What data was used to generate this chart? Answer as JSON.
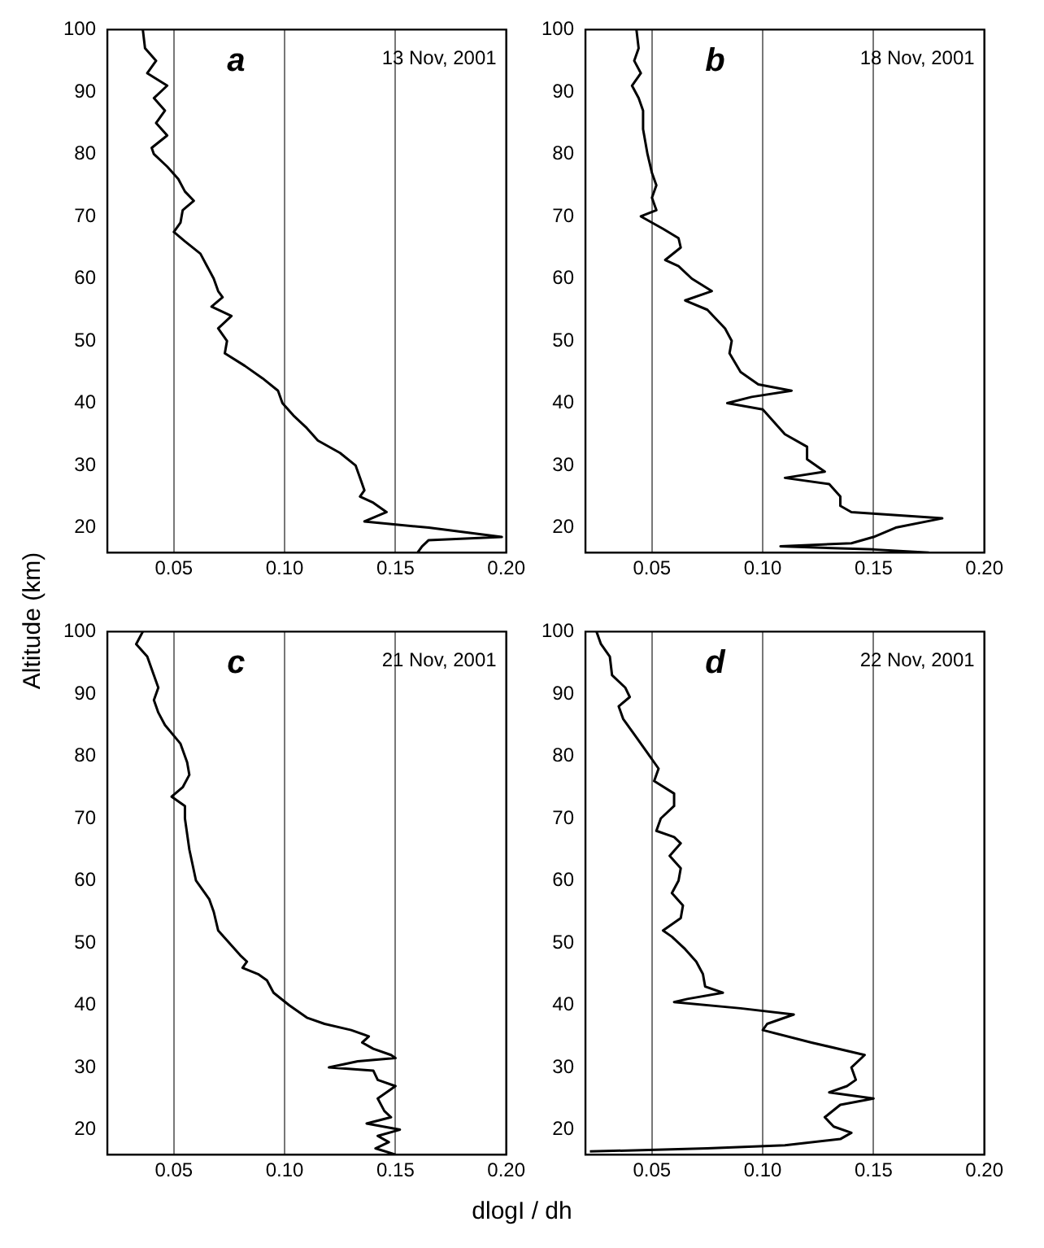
{
  "chart_data": [
    {
      "type": "line",
      "ylabel": "Altitude (km)",
      "annotations": [
        "a",
        "13 Nov, 2001"
      ],
      "xlim": [
        0.02,
        0.2
      ],
      "ylim": [
        16,
        100
      ],
      "xticks": [
        {
          "value": 0.05,
          "label": "0.05"
        },
        {
          "value": 0.1,
          "label": "0.10"
        },
        {
          "value": 0.15,
          "label": "0.15"
        },
        {
          "value": 0.2,
          "label": "0.20"
        }
      ],
      "yticks": [
        20,
        30,
        40,
        50,
        60,
        70,
        80,
        90,
        100
      ],
      "grid": "x",
      "series": [
        {
          "color": "#000000",
          "x": [
            0.036,
            0.037,
            0.042,
            0.038,
            0.047,
            0.041,
            0.046,
            0.042,
            0.047,
            0.04,
            0.041,
            0.047,
            0.052,
            0.055,
            0.059,
            0.054,
            0.053,
            0.05,
            0.055,
            0.062,
            0.065,
            0.068,
            0.07,
            0.072,
            0.067,
            0.076,
            0.07,
            0.074,
            0.073,
            0.082,
            0.09,
            0.097,
            0.099,
            0.104,
            0.11,
            0.115,
            0.125,
            0.132,
            0.134,
            0.136,
            0.134,
            0.14,
            0.146,
            0.136,
            0.165,
            0.198,
            0.165,
            0.162,
            0.16
          ],
          "values": [
            100,
            97,
            95,
            93,
            91,
            89,
            87,
            85,
            83,
            81,
            80,
            78,
            76,
            74,
            72.5,
            71,
            69,
            67.5,
            66,
            64,
            62,
            60,
            58,
            57,
            55.5,
            54,
            52,
            50,
            48,
            46,
            44,
            42,
            40,
            38,
            36,
            34,
            32,
            30,
            28,
            26,
            25,
            24,
            22.5,
            21,
            20,
            18.5,
            18,
            17,
            16
          ]
        }
      ]
    },
    {
      "type": "line",
      "annotations": [
        "b",
        "18 Nov, 2001"
      ],
      "xlim": [
        0.02,
        0.2
      ],
      "ylim": [
        16,
        100
      ],
      "xticks": [
        {
          "value": 0.05,
          "label": "0.05"
        },
        {
          "value": 0.1,
          "label": "0.10"
        },
        {
          "value": 0.15,
          "label": "0.15"
        },
        {
          "value": 0.2,
          "label": "0.20"
        }
      ],
      "yticks": [
        20,
        30,
        40,
        50,
        60,
        70,
        80,
        90,
        100
      ],
      "grid": "x",
      "series": [
        {
          "color": "#000000",
          "x": [
            0.043,
            0.044,
            0.042,
            0.045,
            0.041,
            0.044,
            0.046,
            0.046,
            0.048,
            0.05,
            0.052,
            0.05,
            0.052,
            0.045,
            0.055,
            0.062,
            0.063,
            0.056,
            0.062,
            0.068,
            0.077,
            0.065,
            0.075,
            0.083,
            0.086,
            0.085,
            0.09,
            0.098,
            0.113,
            0.095,
            0.084,
            0.1,
            0.105,
            0.11,
            0.12,
            0.12,
            0.128,
            0.11,
            0.13,
            0.135,
            0.135,
            0.14,
            0.181,
            0.16,
            0.15,
            0.14,
            0.108,
            0.15,
            0.175
          ],
          "values": [
            100,
            97,
            95,
            93,
            91,
            89,
            87,
            84,
            80,
            77,
            75,
            73,
            71,
            70,
            68,
            66.5,
            65,
            63,
            62,
            60,
            58,
            56.5,
            55,
            52,
            50,
            48,
            45,
            43,
            42,
            41,
            40,
            39,
            37,
            35,
            33,
            31,
            29,
            28,
            27,
            25,
            23.5,
            22.5,
            21.5,
            20,
            18.5,
            17.5,
            17,
            16.5,
            16
          ]
        }
      ]
    },
    {
      "type": "line",
      "xlabel": "dlogI / dh",
      "annotations": [
        "c",
        "21 Nov, 2001"
      ],
      "xlim": [
        0.02,
        0.2
      ],
      "ylim": [
        16,
        100
      ],
      "xticks": [
        {
          "value": 0.05,
          "label": "0.05"
        },
        {
          "value": 0.1,
          "label": "0.10"
        },
        {
          "value": 0.15,
          "label": "0.15"
        },
        {
          "value": 0.2,
          "label": "0.20"
        }
      ],
      "yticks": [
        20,
        30,
        40,
        50,
        60,
        70,
        80,
        90,
        100
      ],
      "grid": "x",
      "series": [
        {
          "color": "#000000",
          "x": [
            0.036,
            0.033,
            0.038,
            0.041,
            0.043,
            0.041,
            0.043,
            0.046,
            0.053,
            0.056,
            0.057,
            0.054,
            0.049,
            0.055,
            0.055,
            0.057,
            0.06,
            0.066,
            0.068,
            0.07,
            0.075,
            0.08,
            0.083,
            0.081,
            0.088,
            0.092,
            0.095,
            0.102,
            0.11,
            0.118,
            0.13,
            0.138,
            0.135,
            0.14,
            0.148,
            0.15,
            0.133,
            0.12,
            0.14,
            0.142,
            0.15,
            0.142,
            0.145,
            0.148,
            0.137,
            0.152,
            0.142,
            0.147,
            0.141,
            0.15
          ],
          "values": [
            100,
            98,
            96,
            93,
            91,
            89,
            87,
            85,
            82,
            79,
            77,
            75,
            73.5,
            72,
            70,
            65,
            60,
            57,
            55,
            52,
            50,
            48,
            47,
            46,
            45,
            44,
            42,
            40,
            38,
            37,
            36,
            35,
            34,
            33,
            32,
            31.5,
            31,
            30,
            29.5,
            28,
            27,
            25,
            23,
            22,
            21,
            20,
            19,
            18,
            17,
            16
          ]
        }
      ]
    },
    {
      "type": "line",
      "annotations": [
        "d",
        "22 Nov, 2001"
      ],
      "xlim": [
        0.02,
        0.2
      ],
      "ylim": [
        16,
        100
      ],
      "xticks": [
        {
          "value": 0.05,
          "label": "0.05"
        },
        {
          "value": 0.1,
          "label": "0.10"
        },
        {
          "value": 0.15,
          "label": "0.15"
        },
        {
          "value": 0.2,
          "label": "0.20"
        }
      ],
      "yticks": [
        20,
        30,
        40,
        50,
        60,
        70,
        80,
        90,
        100
      ],
      "grid": "x",
      "series": [
        {
          "color": "#000000",
          "x": [
            0.025,
            0.027,
            0.031,
            0.032,
            0.038,
            0.04,
            0.035,
            0.037,
            0.043,
            0.049,
            0.053,
            0.051,
            0.06,
            0.06,
            0.054,
            0.052,
            0.06,
            0.063,
            0.058,
            0.063,
            0.062,
            0.059,
            0.064,
            0.063,
            0.055,
            0.059,
            0.065,
            0.07,
            0.073,
            0.074,
            0.082,
            0.066,
            0.06,
            0.09,
            0.114,
            0.102,
            0.1,
            0.122,
            0.146,
            0.14,
            0.142,
            0.138,
            0.13,
            0.15,
            0.135,
            0.128,
            0.132,
            0.14,
            0.135,
            0.11,
            0.075,
            0.022
          ],
          "values": [
            100,
            98,
            96,
            93,
            91,
            89.5,
            88,
            86,
            83,
            80,
            78,
            76,
            74,
            72,
            70,
            68,
            67,
            66,
            64,
            62,
            60,
            58,
            56,
            54,
            52,
            51,
            49,
            47,
            45,
            43,
            42,
            41,
            40.5,
            39.5,
            38.5,
            37,
            36,
            34,
            32,
            30,
            28,
            27,
            26,
            25,
            24,
            22,
            20.5,
            19.5,
            18.5,
            17.5,
            17,
            16.5
          ]
        }
      ]
    }
  ]
}
